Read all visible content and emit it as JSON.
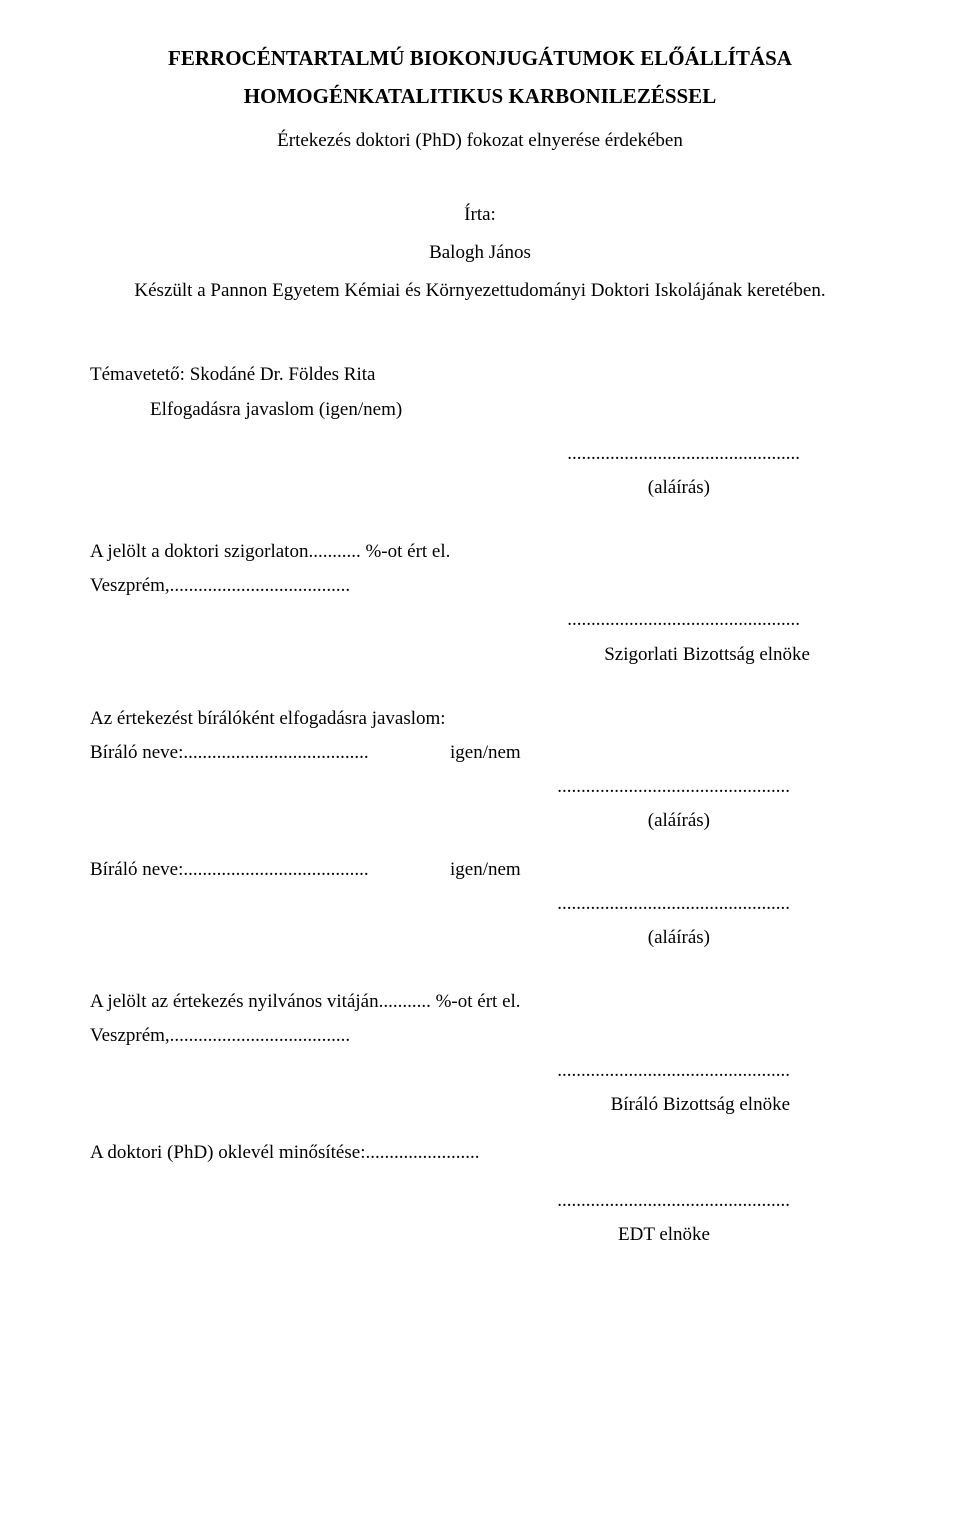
{
  "title_line1": "FERROCÉNTARTALMÚ BIOKONJUGÁTUMOK ELŐÁLLÍTÁSA",
  "title_line2": "HOMOGÉNKATALITIKUS KARBONILEZÉSSEL",
  "subtitle": "Értekezés doktori (PhD) fokozat elnyerése érdekében",
  "author_label": "Írta:",
  "author_name": "Balogh János",
  "institution": "Készült a Pannon Egyetem Kémiai és Környezettudományi Doktori Iskolájának keretében.",
  "supervisor_label": "Témavetető: Skodáné Dr. Földes Rita",
  "acceptance_line": "Elfogadásra javaslom (igen/nem)",
  "dots": ".................................................",
  "signature_label": "(aláírás)",
  "exam_line_prefix": "A jelölt a doktori szigorlaton........... %-ot ért el.",
  "veszprem_line": "Veszprém,......................................",
  "exam_committee": "Szigorlati Bizottság elnöke",
  "reviewer_intro": "Az értekezést bírálóként elfogadásra javaslom:",
  "reviewer_name_prefix": "Bíráló neve:.......................................",
  "reviewer_decision": "igen/nem",
  "defense_line": "A jelölt az értekezés nyilvános vitáján........... %-ot ért el.",
  "review_committee": "Bíráló Bizottság elnöke",
  "diploma_line": "A doktori (PhD) oklevél minősítése:........................",
  "edt_label": "EDT elnöke"
}
